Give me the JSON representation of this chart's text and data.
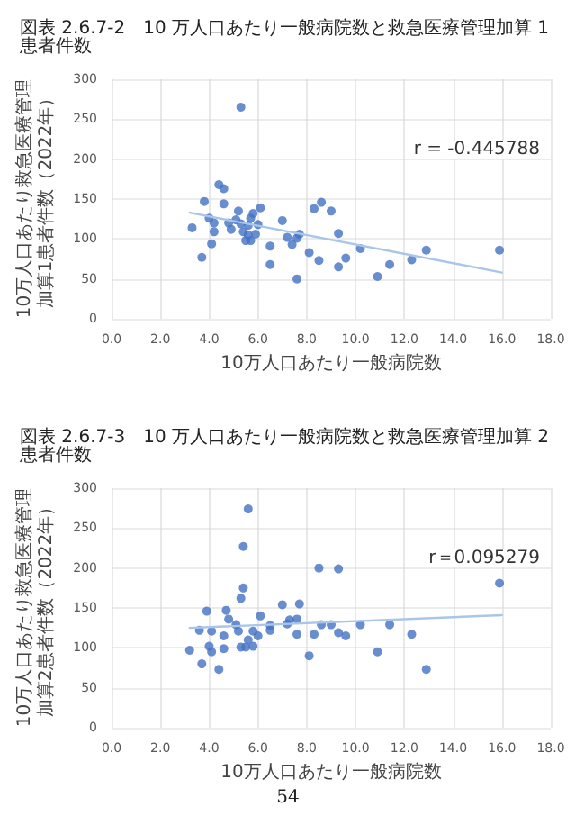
{
  "chart_data": [
    {
      "type": "scatter",
      "title": "図表 2.6.7-2　10 万人口あたり一般病院数と救急医療管理加算 1 患者件数",
      "xlabel": "10万人口あたり一般病院数",
      "ylabel": "10万人口あたり救急医療管理加算1患者件数（2022年）",
      "xlim": [
        0,
        18
      ],
      "xticks": [
        {
          "value": 0,
          "label": "0.0"
        },
        {
          "value": 2,
          "label": "2.0"
        },
        {
          "value": 4,
          "label": "4.0"
        },
        {
          "value": 6,
          "label": "6.0"
        },
        {
          "value": 8,
          "label": "8.0"
        },
        {
          "value": 10,
          "label": "10.0"
        },
        {
          "value": 12,
          "label": "12.0"
        },
        {
          "value": 14,
          "label": "14.0"
        },
        {
          "value": 16,
          "label": "16.0"
        },
        {
          "value": 18,
          "label": "18.0"
        }
      ],
      "ylim": [
        0,
        300
      ],
      "yticks": [
        0,
        50,
        100,
        150,
        200,
        250,
        300
      ],
      "grid": true,
      "series": [
        {
          "color": "#4472c4",
          "marker": "circle",
          "x": [
            3.3,
            3.7,
            3.8,
            4.0,
            4.1,
            4.2,
            4.2,
            4.4,
            4.6,
            4.6,
            4.8,
            4.9,
            5.3,
            5.1,
            5.2,
            5.3,
            5.4,
            5.5,
            5.6,
            5.6,
            5.7,
            5.8,
            5.9,
            6.0,
            6.1,
            5.7,
            6.5,
            6.5,
            7.0,
            7.2,
            7.4,
            7.6,
            7.7,
            7.6,
            8.1,
            8.3,
            8.6,
            8.5,
            9.0,
            9.3,
            9.3,
            9.6,
            10.2,
            10.9,
            11.4,
            12.3,
            12.9,
            15.9
          ],
          "values": [
            114,
            77,
            147,
            126,
            94,
            109,
            120,
            168,
            163,
            144,
            120,
            112,
            265,
            124,
            135,
            119,
            109,
            98,
            117,
            105,
            98,
            132,
            106,
            118,
            139,
            126,
            91,
            68,
            123,
            102,
            93,
            101,
            106,
            50,
            83,
            138,
            146,
            73,
            135,
            107,
            65,
            76,
            88,
            53,
            68,
            74,
            86,
            86
          ]
        },
        {
          "type": "line",
          "color": "#a9c6e8",
          "marker": "none",
          "x": [
            3.2,
            16.0
          ],
          "values": [
            133,
            58
          ]
        }
      ],
      "annotations": [
        "r = -0.445788"
      ]
    },
    {
      "type": "scatter",
      "title": "図表 2.6.7-3　10 万人口あたり一般病院数と救急医療管理加算 2 患者件数",
      "xlabel": "10万人口あたり一般病院数",
      "ylabel": "10万人口あたり救急医療管理加算2患者件数（2022年）",
      "xlim": [
        0,
        18
      ],
      "xticks": [
        {
          "value": 0,
          "label": "0.0"
        },
        {
          "value": 2,
          "label": "2.0"
        },
        {
          "value": 4,
          "label": "4.0"
        },
        {
          "value": 6,
          "label": "6.0"
        },
        {
          "value": 8,
          "label": "8.0"
        },
        {
          "value": 10,
          "label": "10.0"
        },
        {
          "value": 12,
          "label": "12.0"
        },
        {
          "value": 14,
          "label": "14.0"
        },
        {
          "value": 16,
          "label": "16.0"
        },
        {
          "value": 18,
          "label": "18.0"
        }
      ],
      "ylim": [
        0,
        300
      ],
      "yticks": [
        0,
        50,
        100,
        150,
        200,
        250,
        300
      ],
      "grid": true,
      "series": [
        {
          "color": "#4472c4",
          "marker": "circle",
          "x": [
            3.2,
            3.6,
            3.7,
            3.9,
            4.0,
            4.1,
            4.1,
            4.4,
            4.6,
            4.6,
            4.7,
            4.8,
            5.1,
            5.2,
            5.3,
            5.3,
            5.4,
            5.4,
            5.5,
            5.6,
            5.6,
            5.8,
            5.8,
            6.0,
            6.1,
            6.5,
            6.5,
            7.0,
            7.2,
            7.3,
            7.6,
            7.6,
            7.7,
            8.1,
            8.3,
            8.5,
            8.6,
            9.0,
            9.3,
            9.3,
            9.6,
            10.2,
            10.9,
            11.4,
            12.3,
            12.9,
            15.9
          ],
          "values": [
            97,
            122,
            80,
            146,
            102,
            121,
            95,
            73,
            99,
            115,
            147,
            136,
            129,
            121,
            162,
            101,
            175,
            227,
            101,
            274,
            110,
            121,
            102,
            115,
            140,
            122,
            128,
            154,
            130,
            135,
            136,
            117,
            155,
            90,
            117,
            200,
            129,
            129,
            199,
            119,
            115,
            129,
            95,
            129,
            117,
            73,
            181
          ]
        },
        {
          "type": "line",
          "color": "#a9c6e8",
          "marker": "none",
          "x": [
            3.2,
            16.0
          ],
          "values": [
            125,
            141
          ]
        }
      ],
      "annotations": [
        "r＝0.095279",
        "54"
      ]
    }
  ]
}
